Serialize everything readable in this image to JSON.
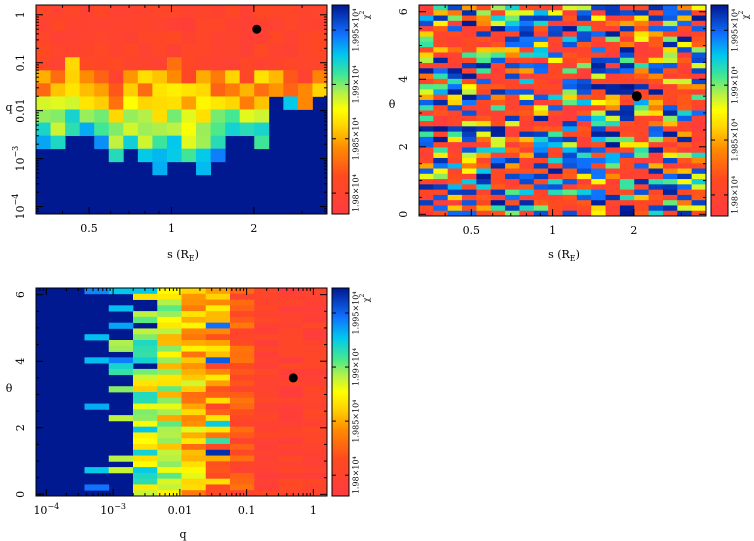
{
  "chart_data": [
    {
      "type": "heatmap",
      "xlabel": "s (R",
      "xlabel_sub": "E",
      "xlabel_close": ")",
      "ylabel": "q",
      "xscale": "log",
      "yscale": "log",
      "xlim": [
        0.32,
        3.7
      ],
      "ylim": [
        7e-05,
        1.6
      ],
      "xticks": [
        {
          "v": 0.5,
          "label": "0.5"
        },
        {
          "v": 1,
          "label": "1"
        },
        {
          "v": 2,
          "label": "2"
        }
      ],
      "yticks": [
        {
          "v": 1,
          "label": "1"
        },
        {
          "v": 0.1,
          "label": "0.1"
        },
        {
          "v": 0.01,
          "label": "0.01"
        },
        {
          "v": 0.001,
          "label": "10",
          "sup": "−3"
        },
        {
          "v": 0.0001,
          "label": "10",
          "sup": "−4"
        }
      ],
      "best_fit": {
        "x": 2.05,
        "y": 0.5
      },
      "colorbar": {
        "label": "χ",
        "label_sup": "2",
        "ticks": [
          "1.98×10⁴",
          "1.985×10⁴",
          "1.99×10⁴",
          "1.995×10⁴"
        ]
      },
      "grid": {
        "x_edges_log": [
          -0.49,
          0.57
        ],
        "y_edges_log": [
          -4.15,
          0.2
        ],
        "x_bins": 20,
        "y_bins": 16,
        "description": "bins in log(s) and log(q); cells coloured by χ²"
      },
      "columns_q_boundary": [
        -1.35,
        -1.35,
        -1.1,
        -1.3,
        -1.3,
        -1.45,
        -1.25,
        -1.4,
        -1.3,
        -1.15,
        -1.6,
        -1.25,
        -1.35,
        -1.3,
        -1.45,
        -1.4,
        -1.4,
        -1.2,
        -1.45,
        -1.3
      ],
      "columns_lower_extent": [
        -2.8,
        -2.9,
        -2.5,
        -2.6,
        -2.7,
        -3.1,
        -2.9,
        -3.2,
        -3.3,
        -3.05,
        -3.2,
        -3.25,
        -3.0,
        -2.5,
        -2.6,
        -2.9,
        -1.8,
        -1.9,
        -1.9,
        -1.6
      ]
    },
    {
      "type": "heatmap",
      "xlabel": "s (R",
      "xlabel_sub": "E",
      "xlabel_close": ")",
      "ylabel": "θ",
      "xscale": "log",
      "yscale": "linear",
      "xlim": [
        0.32,
        3.7
      ],
      "ylim": [
        -0.05,
        6.2
      ],
      "xticks": [
        {
          "v": 0.5,
          "label": "0.5"
        },
        {
          "v": 1,
          "label": "1"
        },
        {
          "v": 2,
          "label": "2"
        }
      ],
      "yticks": [
        {
          "v": 0,
          "label": "0"
        },
        {
          "v": 2,
          "label": "2"
        },
        {
          "v": 4,
          "label": "4"
        },
        {
          "v": 6,
          "label": "6"
        }
      ],
      "best_fit": {
        "x": 2.05,
        "y": 3.5
      },
      "colorbar": {
        "label": "χ",
        "label_sup": "2",
        "ticks": [
          "1.98×10⁴",
          "1.985×10⁴",
          "1.99×10⁴",
          "1.995×10⁴"
        ]
      },
      "grid": {
        "x_bins": 20,
        "y_bins": 40,
        "description": "bins in log(s) and θ; cells coloured by χ²"
      }
    },
    {
      "type": "heatmap",
      "xlabel": "q",
      "ylabel": "θ",
      "xscale": "log",
      "yscale": "linear",
      "xlim": [
        7e-05,
        1.6
      ],
      "ylim": [
        -0.05,
        6.2
      ],
      "xticks": [
        {
          "v": 0.0001,
          "label": "10",
          "sup": "−4"
        },
        {
          "v": 0.001,
          "label": "10",
          "sup": "−3"
        },
        {
          "v": 0.01,
          "label": "0.01"
        },
        {
          "v": 0.1,
          "label": "0.1"
        },
        {
          "v": 1,
          "label": "1"
        }
      ],
      "yticks": [
        {
          "v": 0,
          "label": "0"
        },
        {
          "v": 2,
          "label": "2"
        },
        {
          "v": 4,
          "label": "4"
        },
        {
          "v": 6,
          "label": "6"
        }
      ],
      "best_fit": {
        "x": 0.5,
        "y": 3.5
      },
      "colorbar": {
        "label": "χ",
        "label_sup": "2",
        "ticks": [
          "1.98×10⁴",
          "1.985×10⁴",
          "1.99×10⁴",
          "1.995×10⁴"
        ]
      },
      "grid": {
        "x_bins": 12,
        "y_bins": 36,
        "description": "bins in log(q) and θ; cells coloured by χ²"
      }
    }
  ]
}
